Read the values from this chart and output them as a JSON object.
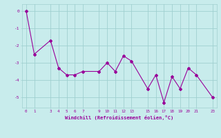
{
  "x": [
    0,
    1,
    3,
    4,
    5,
    6,
    7,
    9,
    10,
    11,
    12,
    13,
    15,
    16,
    17,
    18,
    19,
    20,
    21,
    23
  ],
  "y": [
    0.0,
    -2.5,
    -1.7,
    -3.3,
    -3.7,
    -3.7,
    -3.5,
    -3.5,
    -3.0,
    -3.5,
    -2.6,
    -2.9,
    -4.5,
    -3.7,
    -5.3,
    -3.8,
    -4.5,
    -3.3,
    -3.7,
    -5.0
  ],
  "line_color": "#990099",
  "bg_color": "#c8ecec",
  "grid_color": "#a0d0d0",
  "xlabel": "Windchill (Refroidissement éolien,°C)",
  "ylim": [
    -5.6,
    0.4
  ],
  "xlim": [
    -0.5,
    23.5
  ],
  "xticks": [
    0,
    1,
    3,
    4,
    5,
    6,
    7,
    9,
    10,
    11,
    12,
    13,
    15,
    16,
    17,
    18,
    19,
    20,
    21,
    23
  ],
  "yticks": [
    0,
    -1,
    -2,
    -3,
    -4,
    -5
  ],
  "marker": "D",
  "markersize": 2,
  "linewidth": 0.8
}
